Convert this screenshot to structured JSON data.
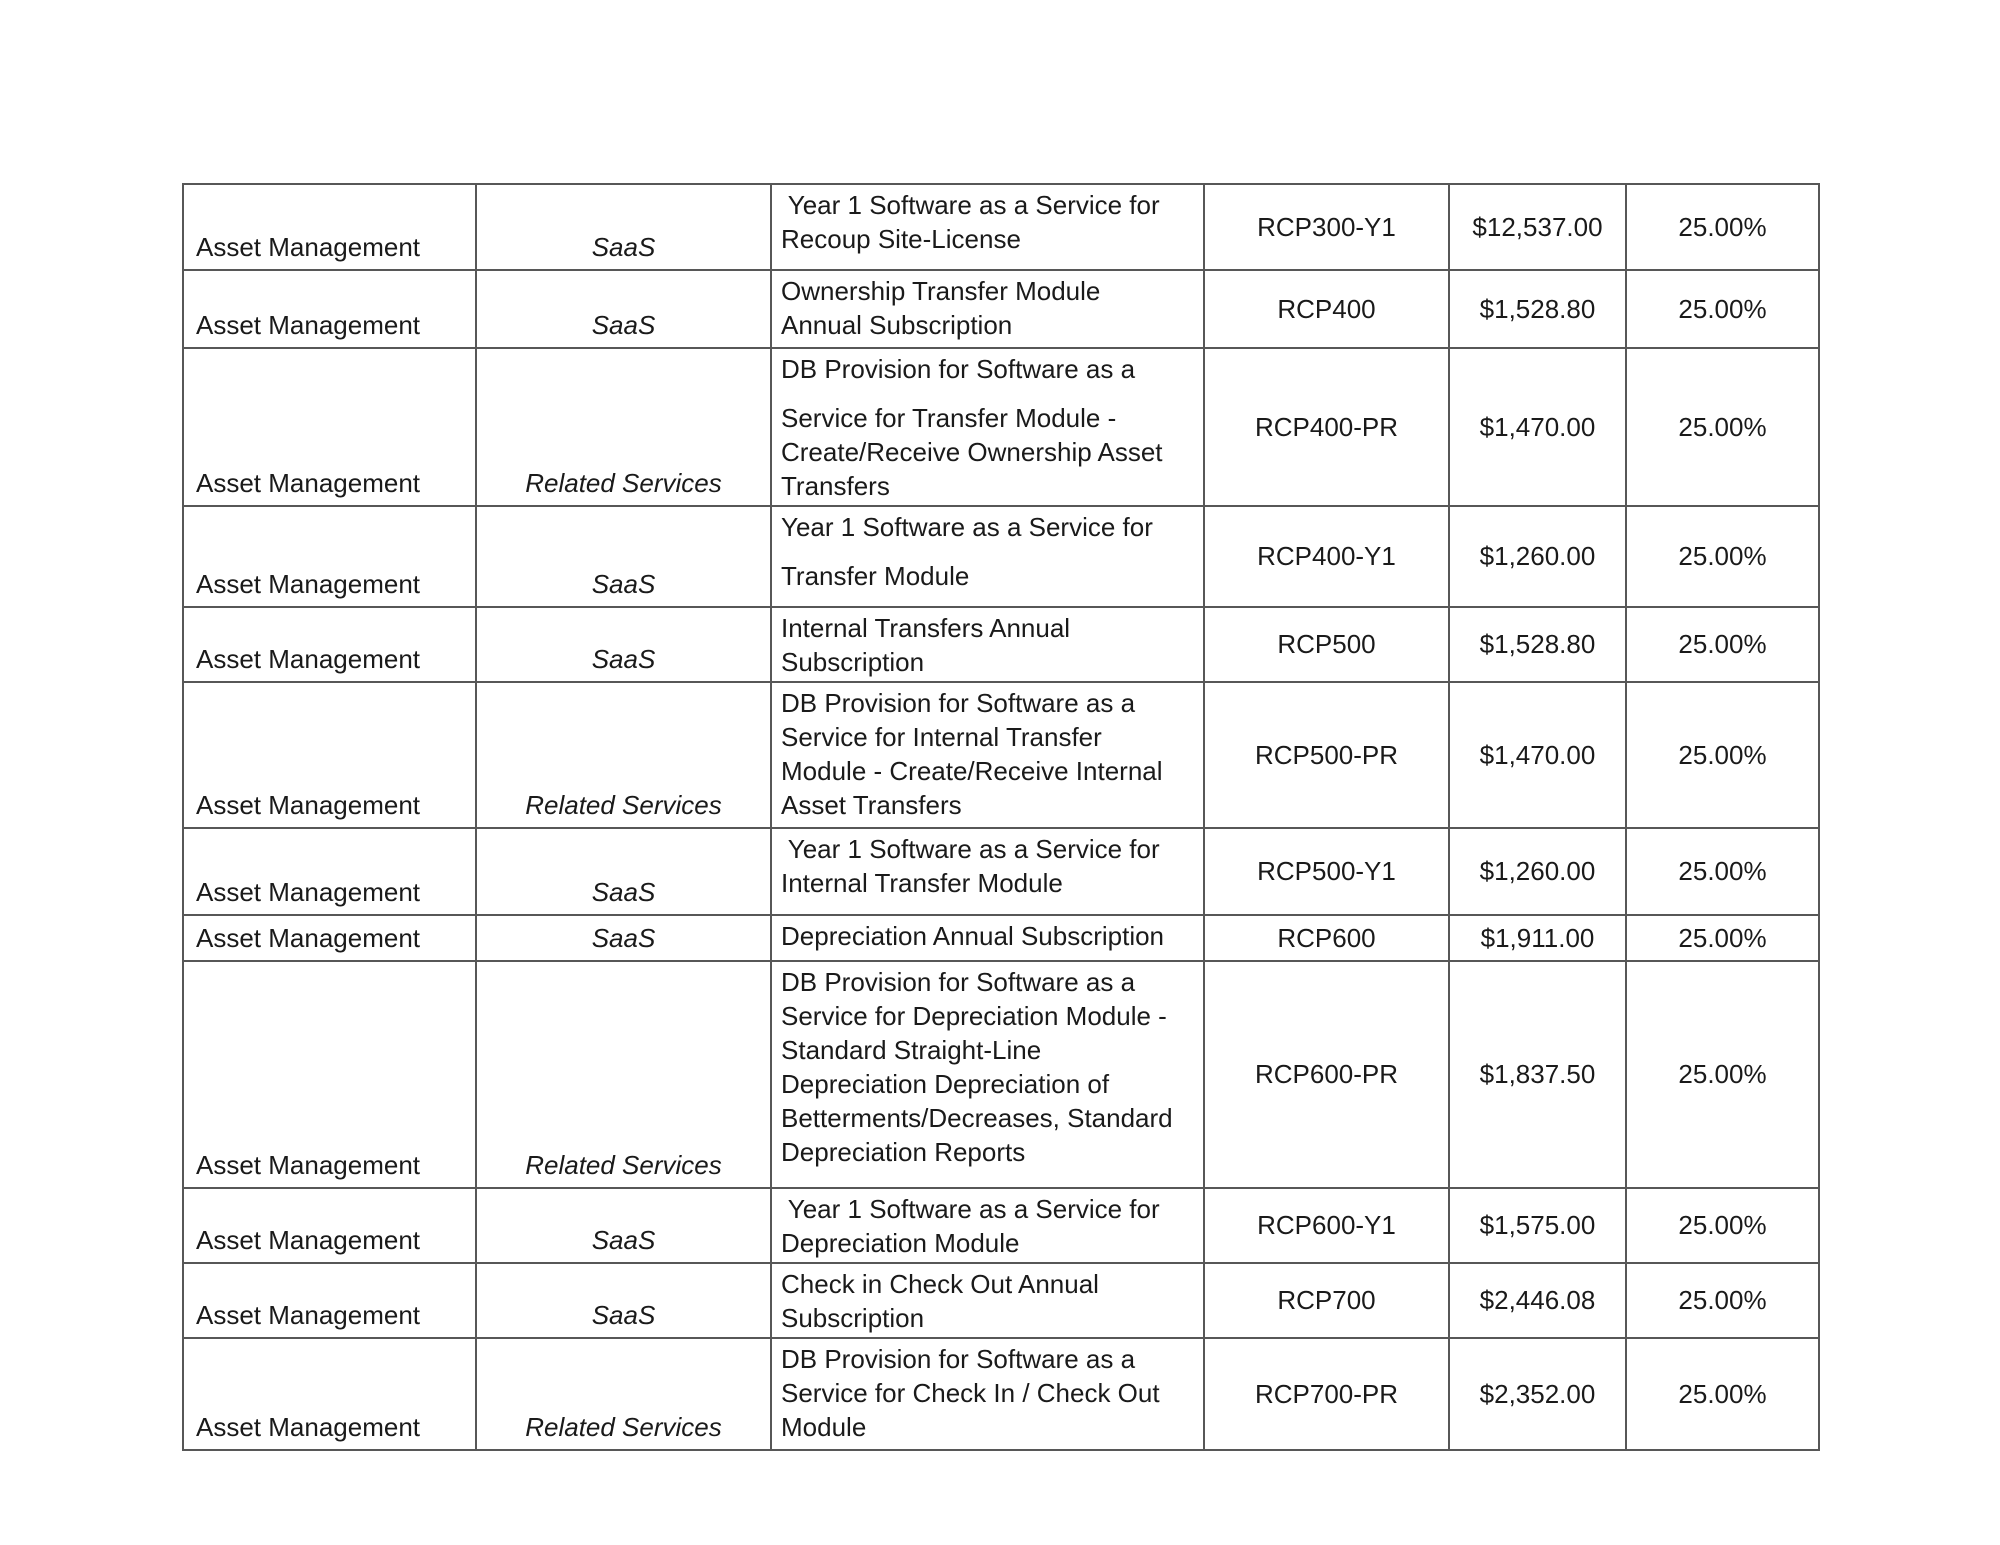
{
  "table": {
    "columns": [
      "category",
      "type",
      "description",
      "code",
      "price",
      "percent"
    ],
    "rows": [
      {
        "category": "Asset Management",
        "type": "SaaS",
        "description": [
          [
            " Year 1 Software as a Service for",
            "Recoup Site-License"
          ]
        ],
        "code": "RCP300-Y1",
        "price": "$12,537.00",
        "percent": "25.00%"
      },
      {
        "category": "Asset Management",
        "type": "SaaS",
        "description": [
          [
            "Ownership Transfer Module",
            "Annual Subscription"
          ]
        ],
        "code": "RCP400",
        "price": "$1,528.80",
        "percent": "25.00%"
      },
      {
        "category": "Asset Management",
        "type": "Related Services",
        "description": [
          [
            "DB Provision for Software as a"
          ],
          [
            "Service for Transfer Module -",
            "Create/Receive Ownership Asset",
            "Transfers"
          ]
        ],
        "code": "RCP400-PR",
        "price": "$1,470.00",
        "percent": "25.00%"
      },
      {
        "category": "Asset Management",
        "type": "SaaS",
        "description": [
          [
            "Year 1 Software as a Service for"
          ],
          [
            "Transfer Module"
          ]
        ],
        "code": "RCP400-Y1",
        "price": "$1,260.00",
        "percent": "25.00%"
      },
      {
        "category": "Asset Management",
        "type": "SaaS",
        "description": [
          [
            "Internal Transfers Annual",
            "Subscription"
          ]
        ],
        "code": "RCP500",
        "price": "$1,528.80",
        "percent": "25.00%"
      },
      {
        "category": "Asset Management",
        "type": "Related Services",
        "description": [
          [
            "DB Provision for Software as a",
            "Service for Internal Transfer",
            "Module - Create/Receive Internal",
            "Asset Transfers"
          ]
        ],
        "code": "RCP500-PR",
        "price": "$1,470.00",
        "percent": "25.00%"
      },
      {
        "category": "Asset Management",
        "type": "SaaS",
        "description": [
          [
            " Year 1 Software as a Service for",
            "Internal Transfer Module"
          ]
        ],
        "code": "RCP500-Y1",
        "price": "$1,260.00",
        "percent": "25.00%"
      },
      {
        "category": "Asset Management",
        "type": "SaaS",
        "description": [
          [
            "Depreciation Annual Subscription"
          ]
        ],
        "code": "RCP600",
        "price": "$1,911.00",
        "percent": "25.00%"
      },
      {
        "category": "Asset Management",
        "type": "Related Services",
        "description": [
          [
            "DB Provision for Software as a",
            "Service for Depreciation Module -",
            "Standard Straight-Line",
            "Depreciation Depreciation of",
            "Betterments/Decreases, Standard",
            "Depreciation Reports"
          ]
        ],
        "code": "RCP600-PR",
        "price": "$1,837.50",
        "percent": "25.00%"
      },
      {
        "category": "Asset Management",
        "type": "SaaS",
        "description": [
          [
            " Year 1 Software as a Service for",
            "Depreciation Module"
          ]
        ],
        "code": "RCP600-Y1",
        "price": "$1,575.00",
        "percent": "25.00%"
      },
      {
        "category": "Asset Management",
        "type": "SaaS",
        "description": [
          [
            "Check in Check Out Annual",
            "Subscription"
          ]
        ],
        "code": "RCP700",
        "price": "$2,446.08",
        "percent": "25.00%"
      },
      {
        "category": "Asset Management",
        "type": "Related Services",
        "description": [
          [
            "DB Provision for Software as a",
            "Service for Check In / Check Out",
            "Module"
          ]
        ],
        "code": "RCP700-PR",
        "price": "$2,352.00",
        "percent": "25.00%"
      }
    ]
  }
}
